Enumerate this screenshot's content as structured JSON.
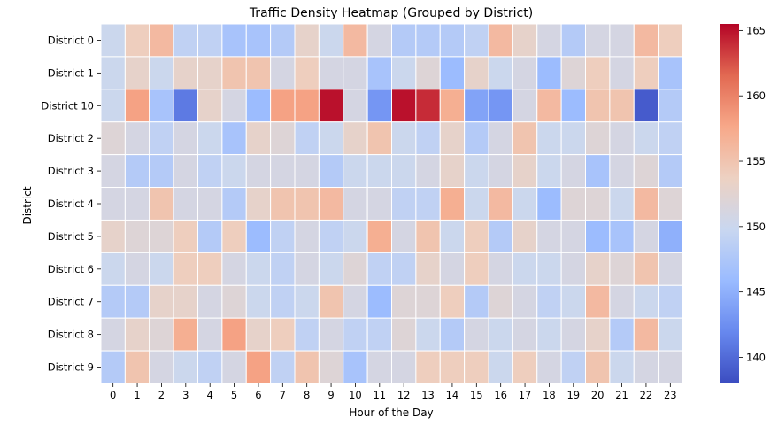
{
  "chart_data": {
    "type": "heatmap",
    "title": "Traffic Density Heatmap (Grouped by District)",
    "xlabel": "Hour of the Day",
    "ylabel": "District",
    "x_categories": [
      "0",
      "1",
      "2",
      "3",
      "4",
      "5",
      "6",
      "7",
      "8",
      "9",
      "10",
      "11",
      "12",
      "13",
      "14",
      "15",
      "16",
      "17",
      "18",
      "19",
      "20",
      "21",
      "22",
      "23"
    ],
    "y_categories": [
      "District 0",
      "District 1",
      "District 10",
      "District 2",
      "District 3",
      "District 4",
      "District 5",
      "District 6",
      "District 7",
      "District 8",
      "District 9"
    ],
    "values": [
      [
        150,
        154,
        156,
        149,
        149,
        147,
        147,
        148,
        153,
        150,
        156,
        151,
        148,
        148,
        148,
        149,
        156,
        153,
        151,
        148,
        151,
        151,
        156,
        154
      ],
      [
        150,
        153,
        150,
        153,
        153,
        155,
        155,
        151,
        154,
        151,
        151,
        147,
        150,
        152,
        146,
        153,
        150,
        151,
        146,
        152,
        154,
        151,
        154,
        147
      ],
      [
        150,
        158,
        147,
        141,
        153,
        151,
        146,
        158,
        158,
        165,
        151,
        143,
        165,
        164,
        157,
        144,
        143,
        151,
        156,
        146,
        155,
        155,
        139,
        148
      ],
      [
        152,
        151,
        149,
        151,
        150,
        147,
        153,
        152,
        149,
        150,
        153,
        155,
        150,
        149,
        153,
        148,
        151,
        155,
        150,
        150,
        152,
        151,
        150,
        149
      ],
      [
        151,
        148,
        148,
        151,
        149,
        150,
        151,
        151,
        151,
        148,
        150,
        150,
        150,
        151,
        153,
        150,
        151,
        153,
        150,
        151,
        147,
        151,
        152,
        148
      ],
      [
        151,
        151,
        155,
        151,
        151,
        148,
        153,
        155,
        155,
        156,
        151,
        151,
        149,
        149,
        157,
        150,
        156,
        150,
        146,
        152,
        152,
        150,
        156,
        152
      ],
      [
        153,
        152,
        152,
        154,
        148,
        154,
        146,
        149,
        151,
        149,
        150,
        157,
        151,
        155,
        150,
        154,
        148,
        153,
        151,
        151,
        146,
        147,
        151,
        145
      ],
      [
        150,
        151,
        150,
        154,
        154,
        151,
        150,
        149,
        151,
        150,
        152,
        149,
        149,
        153,
        151,
        154,
        151,
        150,
        150,
        151,
        153,
        152,
        155,
        151
      ],
      [
        148,
        148,
        153,
        153,
        151,
        152,
        150,
        149,
        150,
        155,
        151,
        146,
        152,
        152,
        154,
        148,
        152,
        151,
        149,
        150,
        156,
        151,
        150,
        149
      ],
      [
        151,
        153,
        152,
        157,
        151,
        158,
        153,
        154,
        149,
        151,
        149,
        149,
        152,
        150,
        148,
        151,
        150,
        151,
        150,
        151,
        153,
        148,
        156,
        150
      ],
      [
        148,
        155,
        151,
        150,
        149,
        151,
        158,
        149,
        155,
        152,
        147,
        151,
        151,
        154,
        154,
        154,
        150,
        154,
        151,
        149,
        155,
        150,
        151,
        151
      ]
    ],
    "colorbar": {
      "min": 138,
      "max": 165.5,
      "ticks": [
        140,
        145,
        150,
        155,
        160,
        165
      ],
      "colormap": "coolwarm",
      "colors": [
        "#3b4cc0",
        "#6788ee",
        "#9abbff",
        "#c9d7f0",
        "#edd1c2",
        "#f7a889",
        "#e26952",
        "#b40426"
      ]
    },
    "grid": true,
    "cell_border_color": "#ffffff"
  }
}
